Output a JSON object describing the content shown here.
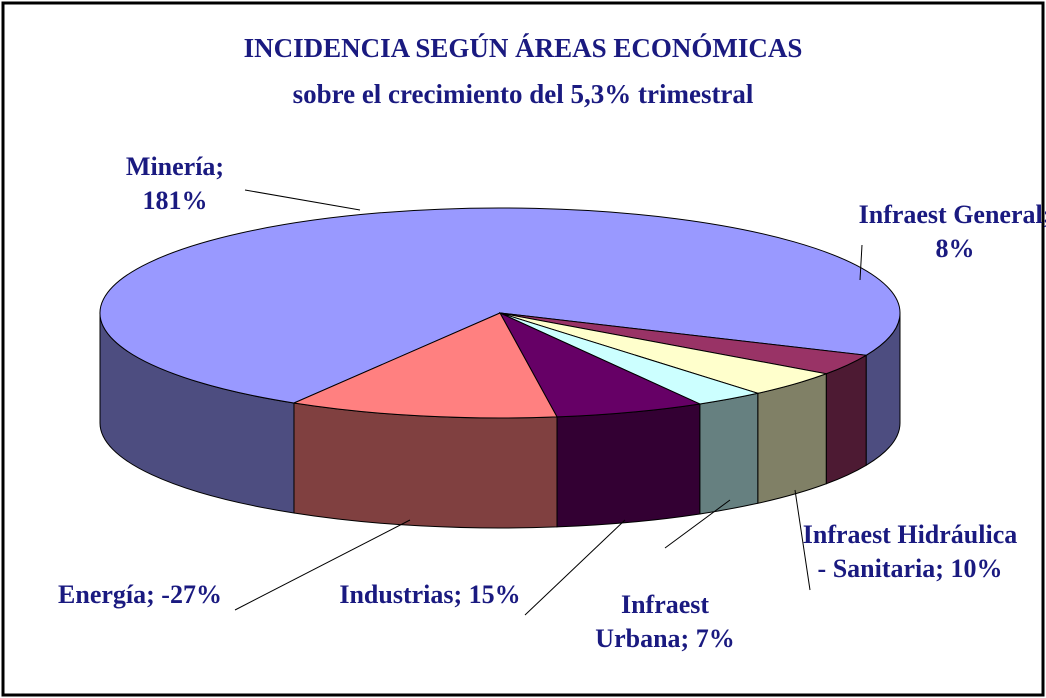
{
  "chart_data": {
    "type": "pie3d",
    "title": "INCIDENCIA SEGÚN ÁREAS ECONÓMICAS",
    "subtitle": "sobre el crecimiento del 5,3% trimestral",
    "categories": [
      "Minería;",
      "Infraest General;",
      "Infraest Hidráulica - Sanitaria;",
      "Infraest Urbana;",
      "Industrias;",
      "Energía;"
    ],
    "values": [
      181,
      8,
      10,
      7,
      15,
      -27
    ],
    "value_labels": [
      "181%",
      "8%",
      "10%",
      "7%",
      "15%",
      "-27%"
    ],
    "colors": [
      "#9999ff",
      "#993366",
      "#ffffcc",
      "#ccffff",
      "#660066",
      "#ff8080"
    ]
  }
}
